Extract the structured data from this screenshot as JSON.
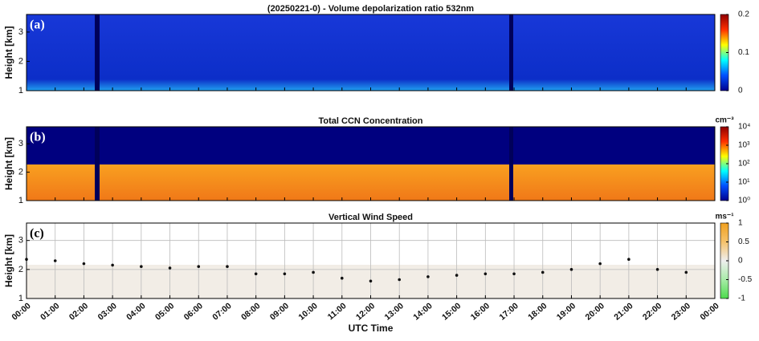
{
  "chart_data": [
    {
      "type": "heatmap",
      "title": "(20250221-0) - Volume depolarization ratio 532nm",
      "panel_label": "(a)",
      "ylabel": "Height [km]",
      "xlim": [
        0,
        24
      ],
      "ylim": [
        1,
        3.6
      ],
      "yticks": [
        1,
        2,
        3
      ],
      "colorbar": {
        "lim": [
          0,
          0.2
        ],
        "ticks": [
          0,
          0.1,
          0.2
        ],
        "log": false,
        "colors": [
          "#00008f",
          "#0050ff",
          "#00ffff",
          "#ffff00",
          "#ff3000",
          "#8f0000"
        ]
      }
    },
    {
      "type": "heatmap",
      "title": "Total CCN Concentration",
      "panel_label": "(b)",
      "ylabel": "Height [km]",
      "xlim": [
        0,
        24
      ],
      "ylim": [
        1,
        3.6
      ],
      "yticks": [
        1,
        2,
        3
      ],
      "colorbar": {
        "unit": "cm⁻³",
        "lim": [
          1,
          10000
        ],
        "log": true,
        "colors": [
          "#00008f",
          "#0050ff",
          "#00ffff",
          "#ffff00",
          "#ff3000",
          "#8f0000"
        ],
        "ticks": [
          {
            "value": 1,
            "label": "10⁰"
          },
          {
            "value": 10,
            "label": "10¹"
          },
          {
            "value": 100,
            "label": "10²"
          },
          {
            "value": 1000,
            "label": "10³"
          },
          {
            "value": 10000,
            "label": "10⁴"
          }
        ]
      }
    },
    {
      "type": "heatmap",
      "title": "Vertical Wind Speed",
      "panel_label": "(c)",
      "ylabel": "Height [km]",
      "xlabel": "UTC Time",
      "grid": true,
      "xlim": [
        0,
        24
      ],
      "ylim": [
        1,
        3.6
      ],
      "yticks": [
        1,
        2,
        3
      ],
      "xticks": [
        {
          "value": 0,
          "label": "00:00"
        },
        {
          "value": 1,
          "label": "01:00"
        },
        {
          "value": 2,
          "label": "02:00"
        },
        {
          "value": 3,
          "label": "03:00"
        },
        {
          "value": 4,
          "label": "04:00"
        },
        {
          "value": 5,
          "label": "05:00"
        },
        {
          "value": 6,
          "label": "06:00"
        },
        {
          "value": 7,
          "label": "07:00"
        },
        {
          "value": 8,
          "label": "08:00"
        },
        {
          "value": 9,
          "label": "09:00"
        },
        {
          "value": 10,
          "label": "10:00"
        },
        {
          "value": 11,
          "label": "11:00"
        },
        {
          "value": 12,
          "label": "12:00"
        },
        {
          "value": 13,
          "label": "13:00"
        },
        {
          "value": 14,
          "label": "14:00"
        },
        {
          "value": 15,
          "label": "15:00"
        },
        {
          "value": 16,
          "label": "16:00"
        },
        {
          "value": 17,
          "label": "17:00"
        },
        {
          "value": 18,
          "label": "18:00"
        },
        {
          "value": 19,
          "label": "19:00"
        },
        {
          "value": 20,
          "label": "20:00"
        },
        {
          "value": 21,
          "label": "21:00"
        },
        {
          "value": 22,
          "label": "22:00"
        },
        {
          "value": 23,
          "label": "23:00"
        },
        {
          "value": 24,
          "label": "00:00"
        }
      ],
      "x": [
        0,
        1,
        2,
        3,
        4,
        5,
        6,
        7,
        8,
        9,
        10,
        11,
        12,
        13,
        14,
        15,
        16,
        17,
        18,
        19,
        20,
        21,
        22,
        23
      ],
      "values": [
        2.35,
        2.3,
        2.2,
        2.15,
        2.1,
        2.05,
        2.1,
        2.1,
        1.85,
        1.85,
        1.9,
        1.7,
        1.6,
        1.65,
        1.75,
        1.8,
        1.85,
        1.85,
        1.9,
        2.0,
        2.2,
        2.35,
        2.0,
        1.9
      ],
      "color": "#111111",
      "colorbar": {
        "unit": "ms⁻¹",
        "lim": [
          -1,
          1
        ],
        "ticks": [
          -1,
          -0.5,
          0,
          0.5,
          1
        ],
        "log": false,
        "colors": [
          "#4ddb4d",
          "#a8eba8",
          "#eeeeee",
          "#f5c26b",
          "#f0a020"
        ]
      }
    }
  ]
}
